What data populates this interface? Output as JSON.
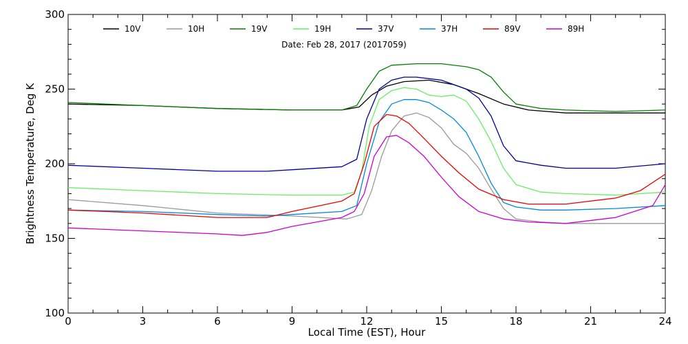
{
  "chart_data": {
    "type": "line",
    "title": "",
    "subtitle": "Date: Feb 28, 2017 (2017059)",
    "xlabel": "Local Time (EST), Hour",
    "ylabel": "Brightness Temperature, Deg K",
    "xlim": [
      0,
      24
    ],
    "ylim": [
      100,
      300
    ],
    "xticks": [
      0,
      3,
      6,
      9,
      12,
      15,
      18,
      21,
      24
    ],
    "yticks": [
      100,
      150,
      200,
      250,
      300
    ],
    "grid": false,
    "legend_position": "top",
    "series": [
      {
        "name": "10V",
        "color": "#000000",
        "x": [
          0,
          3,
          6,
          9,
          11.0,
          11.7,
          12.2,
          12.8,
          13.5,
          14.5,
          15.5,
          16.5,
          17.5,
          18.5,
          20,
          22,
          24
        ],
        "y": [
          240,
          239,
          237,
          236,
          236,
          238,
          246,
          252,
          255,
          256,
          253,
          247,
          240,
          236,
          234,
          234,
          234
        ]
      },
      {
        "name": "10H",
        "color": "#999999",
        "x": [
          0,
          3,
          6,
          9,
          11.2,
          11.8,
          12.2,
          12.6,
          13.0,
          13.5,
          14.0,
          14.5,
          15.0,
          15.5,
          16.0,
          16.5,
          17.0,
          17.5,
          18.0,
          19,
          20,
          22,
          24
        ],
        "y": [
          176,
          172,
          167,
          165,
          163,
          166,
          182,
          205,
          222,
          232,
          234,
          231,
          224,
          213,
          207,
          197,
          183,
          170,
          163,
          161,
          160,
          160,
          160
        ]
      },
      {
        "name": "19V",
        "color": "#008000",
        "x": [
          0,
          3,
          6,
          9,
          11.0,
          11.6,
          12.0,
          12.5,
          13.0,
          14.0,
          15.0,
          16.0,
          16.5,
          17.0,
          17.5,
          18.0,
          19,
          20,
          22,
          24
        ],
        "y": [
          241,
          239,
          237,
          236,
          236,
          239,
          250,
          262,
          266,
          267,
          267,
          265,
          263,
          258,
          248,
          240,
          237,
          236,
          235,
          236
        ]
      },
      {
        "name": "19H",
        "color": "#66ee66",
        "x": [
          0,
          3,
          6,
          9,
          11.0,
          11.5,
          11.8,
          12.1,
          12.5,
          13.0,
          13.5,
          14.0,
          14.5,
          15.0,
          15.5,
          16.0,
          16.5,
          17.0,
          17.5,
          18.0,
          19,
          20,
          22,
          24
        ],
        "y": [
          184,
          182,
          180,
          179,
          179,
          181,
          195,
          225,
          243,
          249,
          251,
          250,
          246,
          245,
          246,
          242,
          230,
          215,
          197,
          186,
          181,
          180,
          179,
          181
        ]
      },
      {
        "name": "37V",
        "color": "#000099",
        "x": [
          0,
          3,
          6,
          8,
          9,
          11.0,
          11.6,
          12.0,
          12.5,
          13.0,
          13.5,
          14.0,
          14.5,
          15.0,
          15.5,
          16.0,
          16.5,
          17.0,
          17.5,
          18.0,
          19,
          20,
          22,
          24
        ],
        "y": [
          199,
          197,
          195,
          195,
          196,
          198,
          203,
          230,
          250,
          256,
          258,
          258,
          257,
          256,
          253,
          250,
          244,
          232,
          212,
          202,
          199,
          197,
          197,
          200
        ]
      },
      {
        "name": "37H",
        "color": "#0088dd",
        "x": [
          0,
          3,
          6,
          8,
          9,
          11.0,
          11.6,
          12.0,
          12.5,
          13.0,
          13.5,
          14.0,
          14.5,
          15.0,
          15.5,
          16.0,
          16.5,
          17.0,
          17.5,
          18.0,
          19,
          20,
          22,
          24
        ],
        "y": [
          169,
          168,
          166,
          165,
          166,
          168,
          172,
          200,
          228,
          240,
          243,
          243,
          241,
          236,
          230,
          221,
          205,
          187,
          174,
          171,
          169,
          169,
          170,
          172
        ]
      },
      {
        "name": "89V",
        "color": "#ee0000",
        "x": [
          0,
          3,
          6,
          8,
          9,
          11.0,
          11.5,
          11.9,
          12.3,
          12.8,
          13.2,
          13.7,
          14.3,
          15.0,
          15.7,
          16.5,
          17.5,
          18.5,
          20,
          22,
          23,
          24
        ],
        "y": [
          169,
          167,
          164,
          164,
          168,
          175,
          180,
          200,
          225,
          233,
          232,
          227,
          217,
          205,
          194,
          183,
          176,
          173,
          173,
          177,
          182,
          193
        ]
      },
      {
        "name": "89H",
        "color": "#cc00cc",
        "x": [
          0,
          3,
          6,
          7,
          8,
          9,
          11.0,
          11.5,
          11.9,
          12.3,
          12.8,
          13.2,
          13.7,
          14.3,
          15.0,
          15.7,
          16.5,
          17.5,
          18.5,
          20,
          22,
          23.5,
          24
        ],
        "y": [
          157,
          155,
          153,
          152,
          154,
          158,
          164,
          168,
          180,
          205,
          218,
          219,
          214,
          205,
          191,
          178,
          168,
          163,
          161,
          160,
          164,
          172,
          186
        ]
      }
    ]
  }
}
